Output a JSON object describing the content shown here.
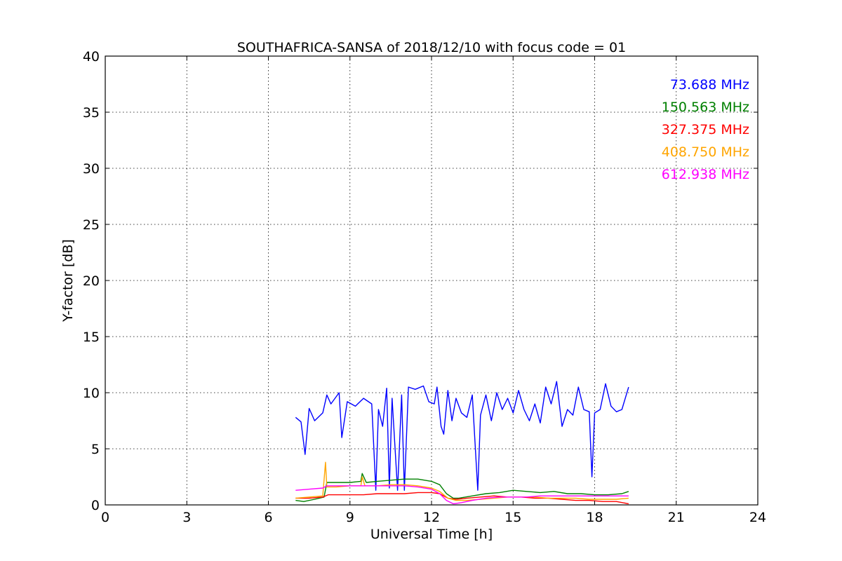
{
  "chart_data": {
    "type": "line",
    "title": "SOUTHAFRICA-SANSA of 2018/12/10 with focus code = 01",
    "xlabel": "Universal Time [h]",
    "ylabel": "Y-factor [dB]",
    "xlim": [
      0,
      24
    ],
    "ylim": [
      0,
      40
    ],
    "xticks": [
      0,
      3,
      6,
      9,
      12,
      15,
      18,
      21,
      24
    ],
    "yticks": [
      0,
      5,
      10,
      15,
      20,
      25,
      30,
      35,
      40
    ],
    "grid": true,
    "legend_position": "top-right",
    "series": [
      {
        "name": "73.688 MHz",
        "color": "#0000ff",
        "points": [
          [
            7.0,
            7.8
          ],
          [
            7.2,
            7.4
          ],
          [
            7.35,
            4.5
          ],
          [
            7.5,
            8.6
          ],
          [
            7.7,
            7.5
          ],
          [
            8.0,
            8.2
          ],
          [
            8.15,
            9.8
          ],
          [
            8.3,
            9.0
          ],
          [
            8.6,
            10.0
          ],
          [
            8.7,
            6.0
          ],
          [
            8.9,
            9.2
          ],
          [
            9.2,
            8.8
          ],
          [
            9.5,
            9.5
          ],
          [
            9.8,
            9.0
          ],
          [
            9.95,
            1.3
          ],
          [
            10.05,
            8.5
          ],
          [
            10.2,
            7.0
          ],
          [
            10.35,
            10.4
          ],
          [
            10.45,
            1.5
          ],
          [
            10.55,
            9.5
          ],
          [
            10.75,
            1.3
          ],
          [
            10.9,
            9.8
          ],
          [
            11.0,
            1.3
          ],
          [
            11.15,
            10.5
          ],
          [
            11.4,
            10.3
          ],
          [
            11.7,
            10.6
          ],
          [
            11.9,
            9.2
          ],
          [
            12.1,
            9.0
          ],
          [
            12.2,
            10.5
          ],
          [
            12.35,
            7.0
          ],
          [
            12.45,
            6.3
          ],
          [
            12.6,
            10.2
          ],
          [
            12.75,
            7.5
          ],
          [
            12.9,
            9.5
          ],
          [
            13.1,
            8.2
          ],
          [
            13.3,
            7.8
          ],
          [
            13.5,
            9.8
          ],
          [
            13.7,
            1.3
          ],
          [
            13.8,
            8.0
          ],
          [
            14.0,
            9.8
          ],
          [
            14.2,
            7.5
          ],
          [
            14.4,
            10.0
          ],
          [
            14.6,
            8.5
          ],
          [
            14.8,
            9.5
          ],
          [
            15.0,
            8.2
          ],
          [
            15.2,
            10.2
          ],
          [
            15.4,
            8.5
          ],
          [
            15.6,
            7.5
          ],
          [
            15.8,
            9.0
          ],
          [
            16.0,
            7.3
          ],
          [
            16.2,
            10.5
          ],
          [
            16.4,
            9.0
          ],
          [
            16.6,
            11.0
          ],
          [
            16.8,
            7.0
          ],
          [
            17.0,
            8.5
          ],
          [
            17.2,
            8.0
          ],
          [
            17.4,
            10.5
          ],
          [
            17.6,
            8.5
          ],
          [
            17.8,
            8.3
          ],
          [
            17.9,
            2.5
          ],
          [
            18.0,
            8.2
          ],
          [
            18.2,
            8.5
          ],
          [
            18.4,
            10.8
          ],
          [
            18.6,
            8.8
          ],
          [
            18.8,
            8.3
          ],
          [
            19.0,
            8.5
          ],
          [
            19.25,
            10.5
          ]
        ]
      },
      {
        "name": "150.563 MHz",
        "color": "#008000",
        "points": [
          [
            7.0,
            0.4
          ],
          [
            7.3,
            0.3
          ],
          [
            7.7,
            0.5
          ],
          [
            8.05,
            0.7
          ],
          [
            8.15,
            2.0
          ],
          [
            8.5,
            2.0
          ],
          [
            9.0,
            2.0
          ],
          [
            9.4,
            2.1
          ],
          [
            9.45,
            2.8
          ],
          [
            9.6,
            2.0
          ],
          [
            10.0,
            2.1
          ],
          [
            10.5,
            2.2
          ],
          [
            11.0,
            2.3
          ],
          [
            11.5,
            2.3
          ],
          [
            12.0,
            2.1
          ],
          [
            12.3,
            1.8
          ],
          [
            12.55,
            1.0
          ],
          [
            12.8,
            0.6
          ],
          [
            13.0,
            0.6
          ],
          [
            13.5,
            0.8
          ],
          [
            14.0,
            1.0
          ],
          [
            14.5,
            1.1
          ],
          [
            15.0,
            1.3
          ],
          [
            15.5,
            1.2
          ],
          [
            16.0,
            1.1
          ],
          [
            16.5,
            1.2
          ],
          [
            17.0,
            1.0
          ],
          [
            17.5,
            1.0
          ],
          [
            18.0,
            0.9
          ],
          [
            18.5,
            0.9
          ],
          [
            19.0,
            1.0
          ],
          [
            19.25,
            1.2
          ]
        ]
      },
      {
        "name": "327.375 MHz",
        "color": "#ff0000",
        "points": [
          [
            7.0,
            0.6
          ],
          [
            7.5,
            0.6
          ],
          [
            8.0,
            0.7
          ],
          [
            8.2,
            0.9
          ],
          [
            8.6,
            0.9
          ],
          [
            9.0,
            0.9
          ],
          [
            9.5,
            0.9
          ],
          [
            10.0,
            1.0
          ],
          [
            10.5,
            1.0
          ],
          [
            11.0,
            1.0
          ],
          [
            11.5,
            1.1
          ],
          [
            12.0,
            1.1
          ],
          [
            12.3,
            1.0
          ],
          [
            12.6,
            0.6
          ],
          [
            12.9,
            0.5
          ],
          [
            13.3,
            0.6
          ],
          [
            13.8,
            0.7
          ],
          [
            14.3,
            0.8
          ],
          [
            14.8,
            0.7
          ],
          [
            15.3,
            0.7
          ],
          [
            15.8,
            0.6
          ],
          [
            16.3,
            0.6
          ],
          [
            16.8,
            0.5
          ],
          [
            17.3,
            0.4
          ],
          [
            17.8,
            0.4
          ],
          [
            18.3,
            0.3
          ],
          [
            18.8,
            0.3
          ],
          [
            19.25,
            0.1
          ]
        ]
      },
      {
        "name": "408.750 MHz",
        "color": "#ffa500",
        "points": [
          [
            7.0,
            0.6
          ],
          [
            7.5,
            0.7
          ],
          [
            8.0,
            0.8
          ],
          [
            8.1,
            3.8
          ],
          [
            8.15,
            1.6
          ],
          [
            8.5,
            1.6
          ],
          [
            9.0,
            1.7
          ],
          [
            9.4,
            1.7
          ],
          [
            9.45,
            2.5
          ],
          [
            9.55,
            1.7
          ],
          [
            10.0,
            1.7
          ],
          [
            10.5,
            1.8
          ],
          [
            11.0,
            1.8
          ],
          [
            11.5,
            1.7
          ],
          [
            12.0,
            1.5
          ],
          [
            12.3,
            1.2
          ],
          [
            12.6,
            0.6
          ],
          [
            12.9,
            0.4
          ],
          [
            13.3,
            0.4
          ],
          [
            13.8,
            0.5
          ],
          [
            14.3,
            0.6
          ],
          [
            14.8,
            0.7
          ],
          [
            15.3,
            0.7
          ],
          [
            15.8,
            0.7
          ],
          [
            16.3,
            0.6
          ],
          [
            16.8,
            0.6
          ],
          [
            17.3,
            0.6
          ],
          [
            17.8,
            0.5
          ],
          [
            18.3,
            0.5
          ],
          [
            18.8,
            0.5
          ],
          [
            19.25,
            0.6
          ]
        ]
      },
      {
        "name": "612.938 MHz",
        "color": "#ff00ff",
        "points": [
          [
            7.0,
            1.3
          ],
          [
            7.5,
            1.4
          ],
          [
            8.0,
            1.5
          ],
          [
            8.15,
            1.7
          ],
          [
            8.6,
            1.7
          ],
          [
            9.0,
            1.7
          ],
          [
            9.5,
            1.7
          ],
          [
            10.0,
            1.7
          ],
          [
            10.5,
            1.7
          ],
          [
            11.0,
            1.7
          ],
          [
            11.5,
            1.6
          ],
          [
            12.0,
            1.4
          ],
          [
            12.3,
            1.0
          ],
          [
            12.55,
            0.4
          ],
          [
            12.8,
            0.1
          ],
          [
            13.1,
            0.2
          ],
          [
            13.5,
            0.4
          ],
          [
            14.0,
            0.6
          ],
          [
            14.5,
            0.7
          ],
          [
            15.0,
            0.7
          ],
          [
            15.5,
            0.7
          ],
          [
            16.0,
            0.8
          ],
          [
            16.5,
            0.8
          ],
          [
            17.0,
            0.8
          ],
          [
            17.5,
            0.8
          ],
          [
            18.0,
            0.8
          ],
          [
            18.5,
            0.8
          ],
          [
            19.0,
            0.8
          ],
          [
            19.25,
            0.8
          ]
        ]
      }
    ]
  }
}
